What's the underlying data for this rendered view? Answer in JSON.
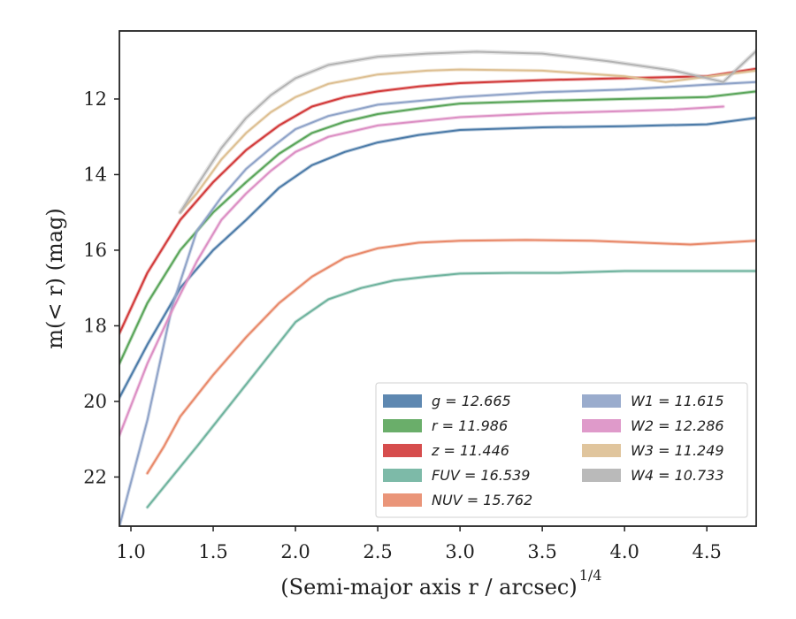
{
  "chart_data": {
    "type": "line",
    "xlabel": "(Semi-major axis r / arcsec)",
    "xlabel_sup": "1/4",
    "ylabel": "m(< r) (mag)",
    "xlim": [
      0.93,
      4.8
    ],
    "ylim": [
      23.3,
      10.2
    ],
    "y_inverted": true,
    "x_ticks": [
      "1.0",
      "1.5",
      "2.0",
      "2.5",
      "3.0",
      "3.5",
      "4.0",
      "4.5"
    ],
    "y_ticks": [
      "12",
      "14",
      "16",
      "18",
      "20",
      "22"
    ],
    "grid": false,
    "legend_position": "lower-right",
    "legend_columns": 2,
    "series": [
      {
        "name": "g = 12.665",
        "color": "#4c7ba8",
        "x": [
          0.93,
          1.1,
          1.3,
          1.5,
          1.7,
          1.9,
          2.1,
          2.3,
          2.5,
          2.75,
          3.0,
          3.5,
          4.0,
          4.5,
          4.8
        ],
        "y": [
          19.9,
          18.5,
          17.0,
          16.0,
          15.2,
          14.35,
          13.75,
          13.4,
          13.15,
          12.95,
          12.82,
          12.75,
          12.72,
          12.67,
          12.5
        ]
      },
      {
        "name": "r = 11.986",
        "color": "#5aa55a",
        "x": [
          0.93,
          1.1,
          1.3,
          1.5,
          1.7,
          1.9,
          2.1,
          2.3,
          2.5,
          2.75,
          3.0,
          3.5,
          4.0,
          4.5,
          4.8
        ],
        "y": [
          19.0,
          17.4,
          16.0,
          15.0,
          14.2,
          13.45,
          12.9,
          12.6,
          12.4,
          12.25,
          12.12,
          12.05,
          12.0,
          11.95,
          11.8
        ]
      },
      {
        "name": "z = 11.446",
        "color": "#d23a3a",
        "x": [
          0.93,
          1.1,
          1.3,
          1.5,
          1.7,
          1.9,
          2.1,
          2.3,
          2.5,
          2.75,
          3.0,
          3.5,
          4.0,
          4.5,
          4.8
        ],
        "y": [
          18.2,
          16.6,
          15.2,
          14.2,
          13.35,
          12.7,
          12.2,
          11.95,
          11.8,
          11.67,
          11.58,
          11.5,
          11.45,
          11.4,
          11.2
        ]
      },
      {
        "name": "FUV = 16.539",
        "color": "#6fb39e",
        "x": [
          1.1,
          1.25,
          1.4,
          1.6,
          1.8,
          2.0,
          2.2,
          2.4,
          2.6,
          2.8,
          3.0,
          3.3,
          3.6,
          4.0,
          4.8
        ],
        "y": [
          22.8,
          22.0,
          21.2,
          20.1,
          19.0,
          17.9,
          17.3,
          17.0,
          16.8,
          16.7,
          16.62,
          16.6,
          16.6,
          16.55,
          16.55
        ]
      },
      {
        "name": "NUV = 15.762",
        "color": "#e8896a",
        "x": [
          1.1,
          1.2,
          1.3,
          1.5,
          1.7,
          1.9,
          2.1,
          2.3,
          2.5,
          2.75,
          3.0,
          3.4,
          3.8,
          4.4,
          4.8
        ],
        "y": [
          21.9,
          21.2,
          20.4,
          19.3,
          18.3,
          17.4,
          16.7,
          16.2,
          15.95,
          15.8,
          15.75,
          15.73,
          15.75,
          15.85,
          15.75
        ]
      },
      {
        "name": "W1 = 11.615",
        "color": "#8fa3c8",
        "x": [
          0.93,
          1.1,
          1.25,
          1.4,
          1.55,
          1.7,
          1.85,
          2.0,
          2.2,
          2.5,
          3.0,
          3.5,
          4.0,
          4.5,
          4.8
        ],
        "y": [
          23.3,
          20.5,
          17.5,
          15.5,
          14.6,
          13.85,
          13.3,
          12.8,
          12.45,
          12.15,
          11.95,
          11.82,
          11.75,
          11.62,
          11.55
        ]
      },
      {
        "name": "W2 = 12.286",
        "color": "#dc8fc4",
        "x": [
          0.93,
          1.1,
          1.25,
          1.4,
          1.55,
          1.7,
          1.85,
          2.0,
          2.2,
          2.5,
          3.0,
          3.5,
          4.0,
          4.3,
          4.6
        ],
        "y": [
          20.9,
          19.0,
          17.6,
          16.3,
          15.2,
          14.5,
          13.9,
          13.4,
          13.0,
          12.7,
          12.48,
          12.38,
          12.32,
          12.28,
          12.2
        ]
      },
      {
        "name": "W3 = 11.249",
        "color": "#ddbf92",
        "x": [
          1.3,
          1.4,
          1.55,
          1.7,
          1.85,
          2.0,
          2.2,
          2.5,
          2.8,
          3.0,
          3.5,
          4.0,
          4.25,
          4.8
        ],
        "y": [
          15.0,
          14.5,
          13.6,
          12.9,
          12.35,
          11.95,
          11.6,
          11.35,
          11.25,
          11.22,
          11.25,
          11.4,
          11.55,
          11.25
        ]
      },
      {
        "name": "W4 = 10.733",
        "color": "#b3b3b3",
        "x": [
          1.3,
          1.4,
          1.55,
          1.7,
          1.85,
          2.0,
          2.2,
          2.5,
          2.8,
          3.1,
          3.5,
          3.9,
          4.3,
          4.6,
          4.8
        ],
        "y": [
          15.0,
          14.3,
          13.3,
          12.5,
          11.9,
          11.45,
          11.1,
          10.88,
          10.8,
          10.75,
          10.8,
          11.0,
          11.25,
          11.55,
          10.73
        ]
      }
    ]
  }
}
